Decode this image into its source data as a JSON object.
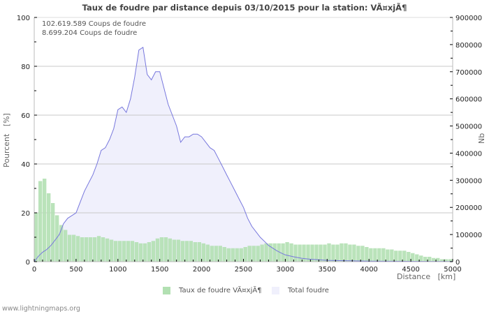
{
  "chart": {
    "title": "Taux de foudre par distance depuis 03/10/2015 pour la station: VÃ¤xjÃ¶",
    "info_lines": [
      "102.619.589  Coups de foudre",
      "8.699.204  Coups de foudre"
    ],
    "y_left_label": "Pourcent   [%]",
    "y_right_label": "Nb",
    "x_label": "Distance   [km]",
    "legend": [
      {
        "label": "Taux de foudre VÃ¤xjÃ¶",
        "color": "#b2e0b2"
      },
      {
        "label": "Total foudre",
        "color": "#f0f0fc"
      }
    ],
    "footer": "www.lightningmaps.org"
  },
  "chart_data": {
    "type": "bar",
    "title": "Taux de foudre par distance depuis 03/10/2015 pour la station: VÃ¤xjÃ¶",
    "xlabel": "Distance [km]",
    "ylabel": "Pourcent [%]",
    "ylabel_right": "Nb",
    "xlim": [
      0,
      5000
    ],
    "ylim": [
      0,
      100
    ],
    "ylim_right": [
      0,
      900000
    ],
    "x_ticks": [
      0,
      500,
      1000,
      1500,
      2000,
      2500,
      3000,
      3500,
      4000,
      4500,
      5000
    ],
    "y_ticks_left": [
      0,
      20,
      40,
      60,
      80,
      100
    ],
    "y_ticks_right": [
      0,
      100000,
      200000,
      300000,
      400000,
      500000,
      600000,
      700000,
      800000,
      900000
    ],
    "grid": true,
    "legend_position": "bottom",
    "annotations": [
      "102.619.589  Coups de foudre",
      "8.699.204  Coups de foudre"
    ],
    "series": [
      {
        "name": "Taux de foudre VÃ¤xjÃ¶",
        "type": "bar",
        "axis": "left",
        "color": "#b2e0b2",
        "bin_km": 50,
        "x": [
          0,
          50,
          100,
          150,
          200,
          250,
          300,
          350,
          400,
          450,
          500,
          550,
          600,
          650,
          700,
          750,
          800,
          850,
          900,
          950,
          1000,
          1050,
          1100,
          1150,
          1200,
          1250,
          1300,
          1350,
          1400,
          1450,
          1500,
          1550,
          1600,
          1650,
          1700,
          1750,
          1800,
          1850,
          1900,
          1950,
          2000,
          2050,
          2100,
          2150,
          2200,
          2250,
          2300,
          2350,
          2400,
          2450,
          2500,
          2550,
          2600,
          2650,
          2700,
          2750,
          2800,
          2850,
          2900,
          2950,
          3000,
          3050,
          3100,
          3150,
          3200,
          3250,
          3300,
          3350,
          3400,
          3450,
          3500,
          3550,
          3600,
          3650,
          3700,
          3750,
          3800,
          3850,
          3900,
          3950,
          4000,
          4050,
          4100,
          4150,
          4200,
          4250,
          4300,
          4350,
          4400,
          4450,
          4500,
          4550,
          4600,
          4650,
          4700,
          4750,
          4800,
          4850,
          4900,
          4950
        ],
        "values": [
          20,
          33,
          34,
          28,
          24,
          19,
          15,
          13,
          11,
          11,
          10.5,
          10,
          10,
          10,
          10,
          10.5,
          10,
          9.5,
          9,
          8.5,
          8.5,
          8.5,
          8.5,
          8.5,
          8,
          7.5,
          7.5,
          8,
          8.5,
          9.5,
          10,
          10,
          9.5,
          9,
          9,
          8.5,
          8.5,
          8.5,
          8,
          8,
          7.5,
          7,
          6.5,
          6.5,
          6.5,
          6,
          5.5,
          5.5,
          5.5,
          5.5,
          6,
          6.5,
          6.5,
          6.5,
          7,
          7.5,
          7.5,
          7.5,
          7.5,
          7.5,
          8,
          7.5,
          7,
          7,
          7,
          7,
          7,
          7,
          7,
          7,
          7.5,
          7,
          7,
          7.5,
          7.5,
          7,
          7,
          6.5,
          6.5,
          6,
          5.5,
          5.5,
          5.5,
          5.5,
          5,
          5,
          4.5,
          4.5,
          4.5,
          4,
          3.5,
          3,
          2.5,
          2,
          2,
          1.5,
          1.5,
          1,
          1,
          1
        ]
      },
      {
        "name": "Total foudre",
        "type": "area",
        "axis": "right",
        "color": "#f0f0fc",
        "line_color": "#7777dd",
        "x": [
          0,
          50,
          100,
          150,
          200,
          250,
          300,
          350,
          400,
          450,
          500,
          550,
          600,
          650,
          700,
          750,
          800,
          850,
          900,
          950,
          1000,
          1050,
          1100,
          1150,
          1200,
          1250,
          1300,
          1350,
          1400,
          1450,
          1500,
          1550,
          1600,
          1650,
          1700,
          1750,
          1800,
          1850,
          1900,
          1950,
          2000,
          2050,
          2100,
          2150,
          2200,
          2250,
          2300,
          2350,
          2400,
          2450,
          2500,
          2550,
          2600,
          2650,
          2700,
          2750,
          2800,
          2850,
          2900,
          2950,
          3000,
          3100,
          3200,
          3300,
          3400,
          3500,
          3600,
          3700,
          3800,
          3900,
          4000,
          4250,
          4500,
          4750,
          5000
        ],
        "values": [
          0,
          20000,
          35000,
          45000,
          60000,
          80000,
          100000,
          140000,
          160000,
          170000,
          180000,
          220000,
          260000,
          290000,
          320000,
          360000,
          410000,
          420000,
          450000,
          490000,
          560000,
          570000,
          550000,
          600000,
          680000,
          780000,
          790000,
          690000,
          670000,
          700000,
          700000,
          640000,
          580000,
          540000,
          500000,
          440000,
          460000,
          460000,
          470000,
          470000,
          460000,
          440000,
          420000,
          410000,
          380000,
          350000,
          320000,
          290000,
          260000,
          230000,
          200000,
          160000,
          130000,
          110000,
          90000,
          75000,
          60000,
          50000,
          40000,
          32000,
          25000,
          18000,
          12000,
          9000,
          7000,
          5000,
          4000,
          3500,
          3000,
          2500,
          2000,
          1500,
          1200,
          1000,
          800
        ]
      }
    ]
  }
}
